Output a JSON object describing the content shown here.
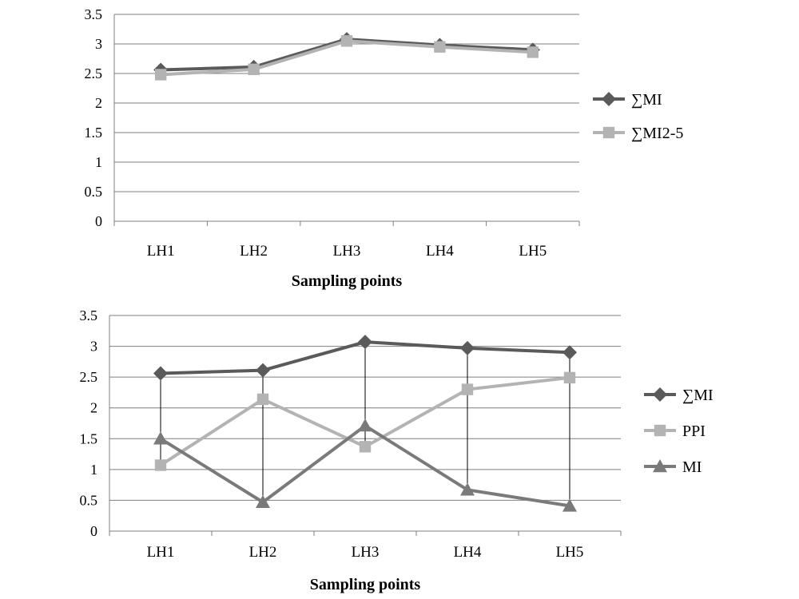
{
  "chart_data": [
    {
      "type": "line",
      "categories": [
        "LH1",
        "LH2",
        "LH3",
        "LH4",
        "LH5"
      ],
      "xlabel": "Sampling points",
      "ylabel": "",
      "ylim": [
        0,
        3.5
      ],
      "yticks": [
        "0",
        "0.5",
        "1",
        "1.5",
        "2",
        "2.5",
        "3",
        "3.5"
      ],
      "grid": true,
      "legend": "right",
      "drop_lines": false,
      "series": [
        {
          "name": "∑MI",
          "values": [
            2.56,
            2.61,
            3.08,
            2.98,
            2.9
          ],
          "marker": "diamond",
          "color": "#5a5a5a"
        },
        {
          "name": "∑MI2-5",
          "values": [
            2.48,
            2.57,
            3.05,
            2.95,
            2.86
          ],
          "marker": "square",
          "color": "#b3b3b3"
        }
      ]
    },
    {
      "type": "line",
      "categories": [
        "LH1",
        "LH2",
        "LH3",
        "LH4",
        "LH5"
      ],
      "xlabel": "Sampling points",
      "ylabel": "",
      "ylim": [
        0,
        3.5
      ],
      "yticks": [
        "0",
        "0.5",
        "1",
        "1.5",
        "2",
        "2.5",
        "3",
        "3.5"
      ],
      "grid": true,
      "legend": "right",
      "drop_lines": true,
      "series": [
        {
          "name": "∑MI",
          "values": [
            2.56,
            2.61,
            3.07,
            2.97,
            2.9
          ],
          "marker": "diamond",
          "color": "#5a5a5a"
        },
        {
          "name": "PPI",
          "values": [
            1.07,
            2.14,
            1.37,
            2.3,
            2.49
          ],
          "marker": "square",
          "color": "#b3b3b3"
        },
        {
          "name": "MI",
          "values": [
            1.5,
            0.47,
            1.71,
            0.67,
            0.41
          ],
          "marker": "triangle",
          "color": "#7a7a7a"
        }
      ]
    }
  ]
}
